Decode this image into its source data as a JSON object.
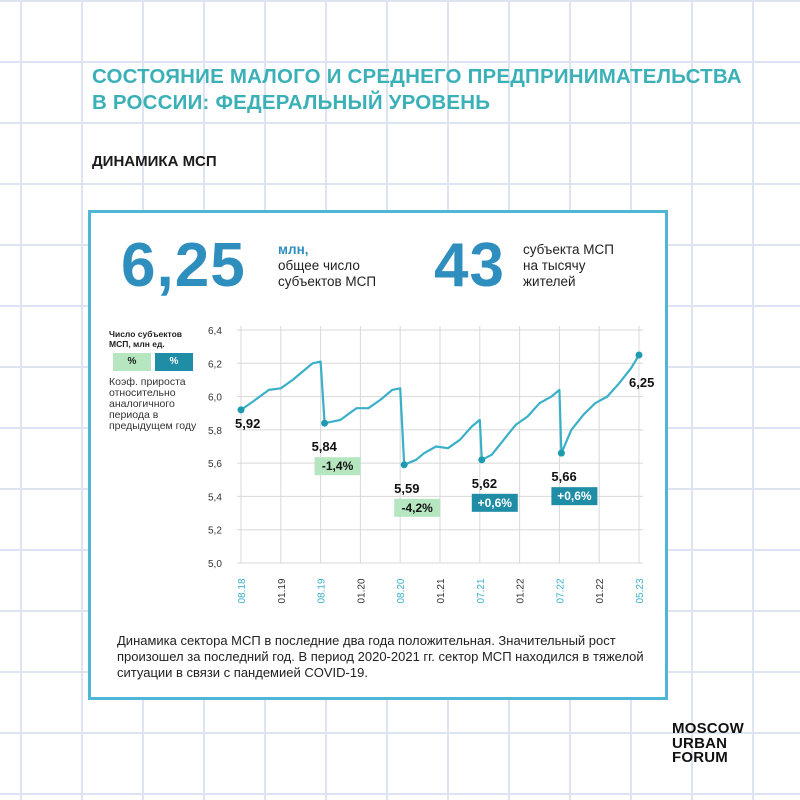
{
  "header": {
    "title_line1": "СОСТОЯНИЕ МАЛОГО И СРЕДНЕГО ПРЕДПРИНИМАТЕЛЬСТВА",
    "title_line2": "В РОССИИ: ФЕДЕРАЛЬНЫЙ УРОВЕНЬ",
    "subtitle": "ДИНАМИКА МСП"
  },
  "kpis": {
    "total_value": "6,25",
    "total_unit": "млн,",
    "total_desc_1": "общее число",
    "total_desc_2": "субъектов МСП",
    "density_value": "43",
    "density_desc_1": "субъекта МСП",
    "density_desc_2": "на тысячу",
    "density_desc_3": "жителей"
  },
  "legend": {
    "title": "Число субъектов МСП, млн ед.",
    "badge_green": "%",
    "badge_teal": "%",
    "note": "Коэф. прироста относительно аналогичного периода в предыдущем году"
  },
  "chart_data": {
    "type": "line",
    "ylim": [
      5.0,
      6.4
    ],
    "yticks": [
      "6,4",
      "6,2",
      "6,0",
      "5,8",
      "5,6",
      "5,4",
      "5,2",
      "5,0"
    ],
    "ytick_values": [
      6.4,
      6.2,
      6.0,
      5.8,
      5.6,
      5.4,
      5.2,
      5.0
    ],
    "xticks": [
      {
        "label": "08.18",
        "highlight": true
      },
      {
        "label": "01.19",
        "highlight": false
      },
      {
        "label": "08.19",
        "highlight": true
      },
      {
        "label": "01.20",
        "highlight": false
      },
      {
        "label": "08.20",
        "highlight": true
      },
      {
        "label": "01.21",
        "highlight": false
      },
      {
        "label": "07.21",
        "highlight": true
      },
      {
        "label": "01.22",
        "highlight": false
      },
      {
        "label": "07.22",
        "highlight": true
      },
      {
        "label": "01.22",
        "highlight": false
      },
      {
        "label": "05.23",
        "highlight": true
      }
    ],
    "series": [
      {
        "values": [
          [
            0,
            5.92
          ],
          [
            0.3,
            5.97
          ],
          [
            0.7,
            6.04
          ],
          [
            1.0,
            6.05
          ],
          [
            1.3,
            6.1
          ],
          [
            1.6,
            6.16
          ],
          [
            1.8,
            6.2
          ],
          [
            2.0,
            6.21
          ],
          [
            2.1,
            5.84
          ],
          [
            2.5,
            5.86
          ],
          [
            2.9,
            5.93
          ],
          [
            3.2,
            5.93
          ],
          [
            3.5,
            5.98
          ],
          [
            3.8,
            6.04
          ],
          [
            4.0,
            6.05
          ],
          [
            4.1,
            5.59
          ],
          [
            4.4,
            5.62
          ],
          [
            4.6,
            5.66
          ],
          [
            4.9,
            5.7
          ],
          [
            5.2,
            5.69
          ],
          [
            5.5,
            5.74
          ],
          [
            5.8,
            5.82
          ],
          [
            6.0,
            5.86
          ],
          [
            6.05,
            5.62
          ],
          [
            6.3,
            5.65
          ],
          [
            6.6,
            5.74
          ],
          [
            6.9,
            5.83
          ],
          [
            7.2,
            5.88
          ],
          [
            7.5,
            5.96
          ],
          [
            7.8,
            6.0
          ],
          [
            8.0,
            6.04
          ],
          [
            8.05,
            5.66
          ],
          [
            8.3,
            5.8
          ],
          [
            8.6,
            5.89
          ],
          [
            8.9,
            5.96
          ],
          [
            9.2,
            6.0
          ],
          [
            9.5,
            6.08
          ],
          [
            9.8,
            6.17
          ],
          [
            10.0,
            6.25
          ]
        ]
      }
    ],
    "points": [
      {
        "x": 0,
        "y": 5.92,
        "label": "5,92"
      },
      {
        "x": 2.1,
        "y": 5.84,
        "label": "5,84",
        "growth": "-1,4%",
        "growth_type": "green"
      },
      {
        "x": 4.1,
        "y": 5.59,
        "label": "5,59",
        "growth": "-4,2%",
        "growth_type": "green"
      },
      {
        "x": 6.05,
        "y": 5.62,
        "label": "5,62",
        "growth": "+0,6%",
        "growth_type": "teal"
      },
      {
        "x": 8.05,
        "y": 5.66,
        "label": "5,66",
        "growth": "+0,6%",
        "growth_type": "teal"
      },
      {
        "x": 10.0,
        "y": 6.25,
        "label": "6,25"
      }
    ],
    "colors": {
      "line": "#3ab0c8",
      "point": "#1e9bb0",
      "grid": "#d8d8d8",
      "tick_highlight": "#3ab0c8",
      "tick": "#333333",
      "green_badge": "#b6e6c0",
      "teal_badge": "#1f8da6"
    }
  },
  "footnote": "Динамика сектора МСП в последние два года положительная. Значительный рост произошел за последний год. В период 2020-2021 гг. сектор МСП находился в тяжелой ситуации в связи с пандемией COVID-19.",
  "logo": {
    "line1": "MOSCOW",
    "line2": "URBAN",
    "line3": "FORUM"
  }
}
